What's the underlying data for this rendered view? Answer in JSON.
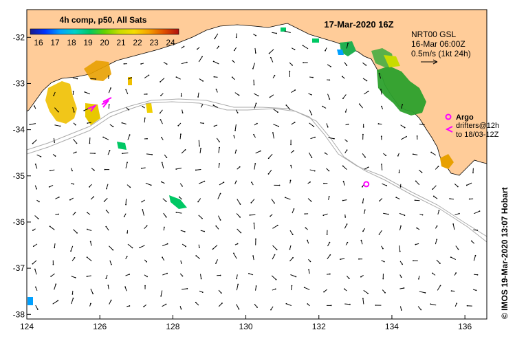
{
  "map": {
    "title": "17-Mar-2020 16Z",
    "lon_ticks": [
      "124",
      "126",
      "128",
      "130",
      "132",
      "134",
      "136"
    ],
    "lat_ticks": [
      "-32",
      "-33",
      "-34",
      "-35",
      "-36",
      "-37",
      "-38"
    ],
    "lon_range": [
      124,
      136.6
    ],
    "lat_range": [
      -38.1,
      -31.4
    ],
    "land_color": "#ffcc99",
    "water_color": "#ffffff",
    "isobath_color": "#aaaaaa"
  },
  "colorbar": {
    "title": "4h comp, p50, All Sats",
    "ticks": [
      "16",
      "17",
      "18",
      "19",
      "20",
      "21",
      "22",
      "23",
      "24"
    ],
    "range": [
      15.5,
      24.5
    ],
    "colors": [
      "#1a1a8c",
      "#0033ff",
      "#00a0ff",
      "#00d2c8",
      "#00c864",
      "#64d200",
      "#c8dc00",
      "#f5dc00",
      "#f5a000",
      "#e05000",
      "#b01010"
    ]
  },
  "currents_info": {
    "line1": "NRT00 GSL",
    "line2": "16-Mar 06:00Z",
    "line3": "0.5m/s (1kt 24h)"
  },
  "argo_legend": {
    "label": "Argo",
    "drifters_line1": "drifters@12h",
    "drifters_line2": "to 18/03-12Z",
    "marker_color": "#ff00ff"
  },
  "credit": "© IMOS 19-Mar-2020 13:07 Hobart",
  "argo_floats": [
    {
      "lon": 133.3,
      "lat": -35.18
    }
  ],
  "sst_patches": [
    {
      "name": "sst-patch-west-shelf",
      "color": "#f0c000"
    },
    {
      "name": "sst-patch-head-bight",
      "color": "#e8a000"
    },
    {
      "name": "sst-patch-eyre-peninsula",
      "color": "#2ca02c"
    },
    {
      "name": "sst-patch-spencer-gulf",
      "color": "#5ab04a"
    }
  ]
}
